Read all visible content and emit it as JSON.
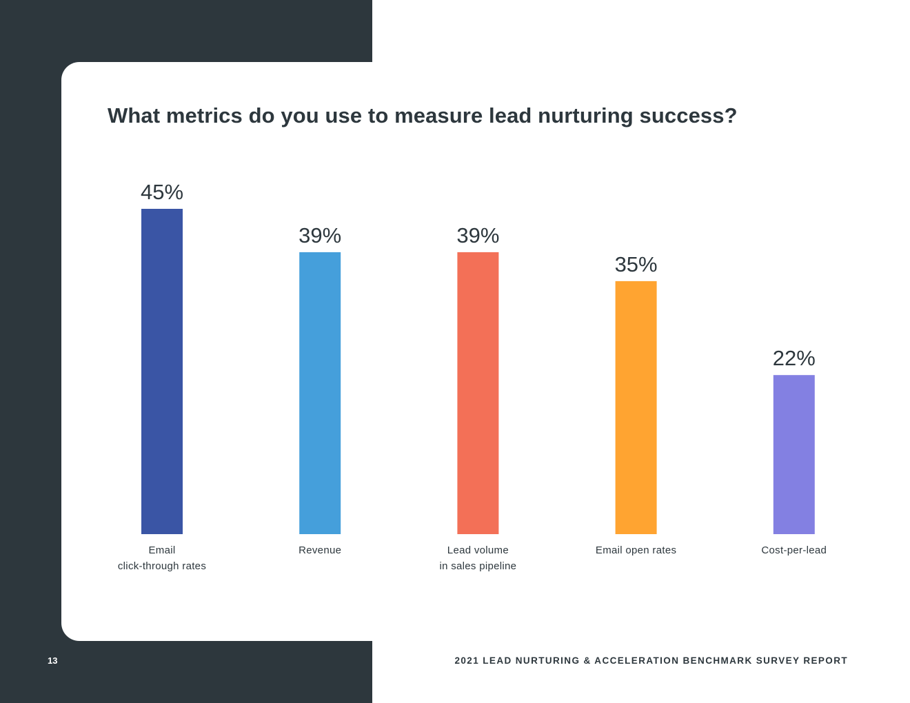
{
  "footer": {
    "page_number": "13",
    "report_title": "2021 LEAD NURTURING & ACCELERATION BENCHMARK SURVEY REPORT"
  },
  "colors": {
    "dark_panel": "#2d373d",
    "text": "#2d373d"
  },
  "chart_data": {
    "type": "bar",
    "title": "What metrics do you use to measure lead nurturing success?",
    "xlabel": "",
    "ylabel": "",
    "ylim": [
      0,
      45
    ],
    "grid": false,
    "categories": [
      [
        "Email",
        "click-through rates"
      ],
      [
        "Revenue"
      ],
      [
        "Lead volume",
        "in sales pipeline"
      ],
      [
        "Email open rates"
      ],
      [
        "Cost-per-lead"
      ]
    ],
    "values": [
      45,
      39,
      39,
      35,
      22
    ],
    "value_labels": [
      "45%",
      "39%",
      "39%",
      "35%",
      "22%"
    ],
    "bar_colors": [
      "#3a55a5",
      "#459fdb",
      "#f37057",
      "#ffa431",
      "#8380e2"
    ]
  }
}
